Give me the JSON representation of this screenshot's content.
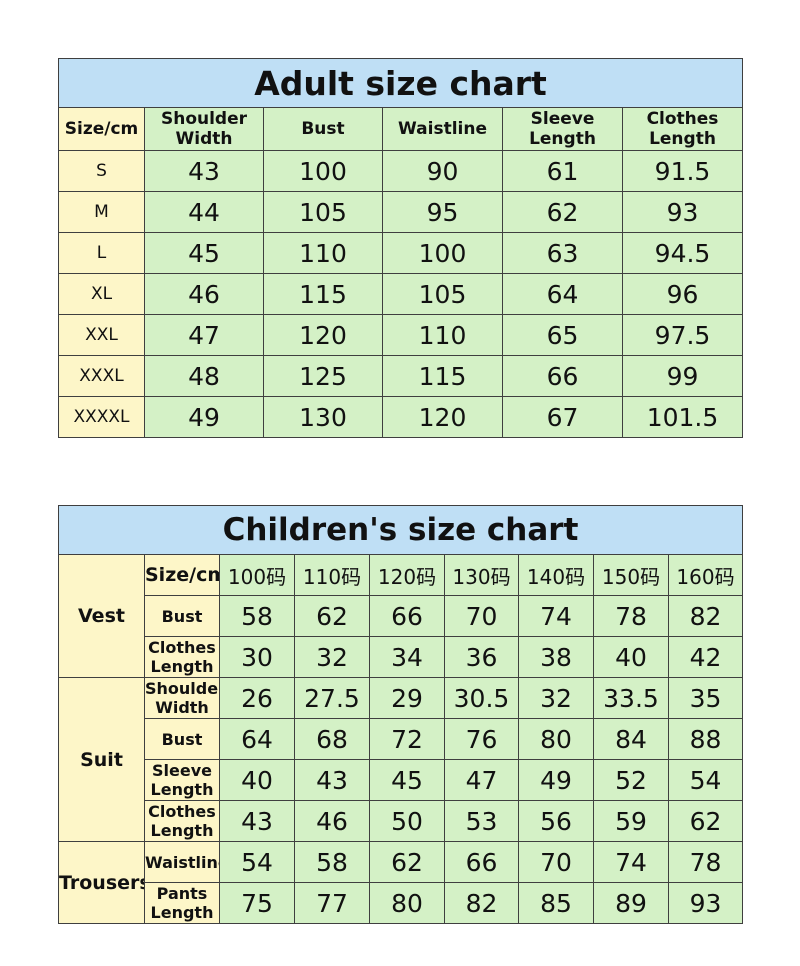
{
  "adult": {
    "title": "Adult size chart",
    "corner": "Size/cm",
    "columns": [
      "Shoulder Width",
      "Bust",
      "Waistline",
      "Sleeve Length",
      "Clothes Length"
    ],
    "rows": [
      {
        "size": "S",
        "values": [
          "43",
          "100",
          "90",
          "61",
          "91.5"
        ]
      },
      {
        "size": "M",
        "values": [
          "44",
          "105",
          "95",
          "62",
          "93"
        ]
      },
      {
        "size": "L",
        "values": [
          "45",
          "110",
          "100",
          "63",
          "94.5"
        ]
      },
      {
        "size": "XL",
        "values": [
          "46",
          "115",
          "105",
          "64",
          "96"
        ]
      },
      {
        "size": "XXL",
        "values": [
          "47",
          "120",
          "110",
          "65",
          "97.5"
        ]
      },
      {
        "size": "XXXL",
        "values": [
          "48",
          "125",
          "115",
          "66",
          "99"
        ]
      },
      {
        "size": "XXXXL",
        "values": [
          "49",
          "130",
          "120",
          "67",
          "101.5"
        ]
      }
    ]
  },
  "children": {
    "title": "Children's size chart",
    "corner": "Size/cm",
    "columns": [
      "100码",
      "110码",
      "120码",
      "130码",
      "140码",
      "150码",
      "160码"
    ],
    "groups": [
      {
        "name": "Vest",
        "rows": [
          {
            "label": "Bust",
            "values": [
              "58",
              "62",
              "66",
              "70",
              "74",
              "78",
              "82"
            ]
          },
          {
            "label": "Clothes Length",
            "values": [
              "30",
              "32",
              "34",
              "36",
              "38",
              "40",
              "42"
            ]
          }
        ]
      },
      {
        "name": "Suit",
        "rows": [
          {
            "label": "Shoulder Width",
            "values": [
              "26",
              "27.5",
              "29",
              "30.5",
              "32",
              "33.5",
              "35"
            ]
          },
          {
            "label": "Bust",
            "values": [
              "64",
              "68",
              "72",
              "76",
              "80",
              "84",
              "88"
            ]
          },
          {
            "label": "Sleeve Length",
            "values": [
              "40",
              "43",
              "45",
              "47",
              "49",
              "52",
              "54"
            ]
          },
          {
            "label": "Clothes Length",
            "values": [
              "43",
              "46",
              "50",
              "53",
              "56",
              "59",
              "62"
            ]
          }
        ]
      },
      {
        "name": "Trousers",
        "rows": [
          {
            "label": "Waistline",
            "values": [
              "54",
              "58",
              "62",
              "66",
              "70",
              "74",
              "78"
            ]
          },
          {
            "label": "Pants Length",
            "values": [
              "75",
              "77",
              "80",
              "82",
              "85",
              "89",
              "93"
            ]
          }
        ]
      }
    ]
  }
}
